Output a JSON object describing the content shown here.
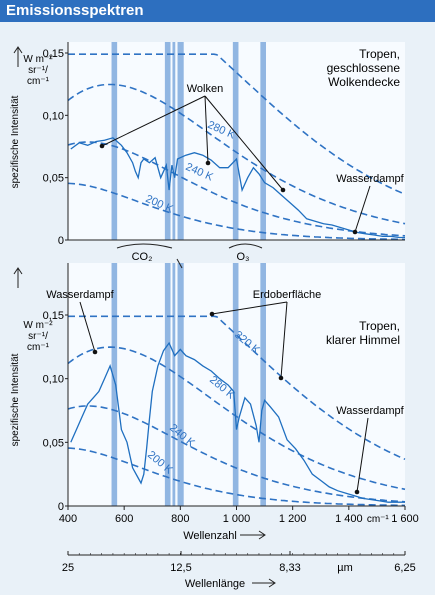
{
  "title": "Emissionsspektren",
  "colors": {
    "header": "#2d6fbf",
    "spectrum": "#1f6fc0",
    "planck": "#2f73c4",
    "band": "#6f9fd8",
    "background": "#e9f1f8",
    "plot": "#f7fbff"
  },
  "chart_data": [
    {
      "type": "line",
      "panel_label": "Tropen,\ngeschlossene\nWolkendecke",
      "ylabel": "spezifische Intensität",
      "yunit": "W m⁻² sr⁻¹/ cm⁻¹",
      "y_ticks": [
        "0,15",
        "0,10",
        "0,05",
        "0"
      ],
      "ylim": [
        0,
        0.15
      ],
      "xlim": [
        400,
        1600
      ],
      "planck_labels": [
        "280 K",
        "240 K",
        "200 K"
      ],
      "annotations": [
        "Wolken",
        "Wasserdampf"
      ],
      "series": [
        {
          "x": [
            410,
            440,
            470,
            500,
            530,
            560,
            590,
            610,
            630,
            640,
            650,
            660,
            670,
            690,
            710,
            730,
            750,
            760,
            770,
            780,
            790,
            800,
            820,
            850,
            880,
            910,
            940,
            970,
            1000,
            1020,
            1040,
            1060,
            1080,
            1100,
            1130,
            1160,
            1190,
            1220,
            1250,
            1280,
            1310,
            1340,
            1370,
            1400,
            1430,
            1460,
            1490,
            1520,
            1550,
            1580,
            1600
          ],
          "y": [
            0.073,
            0.078,
            0.076,
            0.079,
            0.08,
            0.082,
            0.076,
            0.07,
            0.062,
            0.055,
            0.05,
            0.062,
            0.065,
            0.062,
            0.066,
            0.05,
            0.06,
            0.04,
            0.06,
            0.05,
            0.065,
            0.066,
            0.068,
            0.07,
            0.068,
            0.064,
            0.058,
            0.058,
            0.065,
            0.04,
            0.05,
            0.058,
            0.053,
            0.046,
            0.042,
            0.036,
            0.03,
            0.024,
            0.017,
            0.015,
            0.013,
            0.012,
            0.01,
            0.008,
            0.006,
            0.005,
            0.004,
            0.003,
            0.003,
            0.002,
            0.002
          ]
        }
      ]
    },
    {
      "type": "line",
      "panel_label": "Tropen,\nklarer Himmel",
      "ylabel": "spezifische Intensität",
      "yunit": "W m⁻² sr⁻¹/ cm⁻¹",
      "y_ticks": [
        "0,15",
        "0,10",
        "0,05",
        "0"
      ],
      "ylim": [
        0,
        0.15
      ],
      "xlim": [
        400,
        1600
      ],
      "planck_labels": [
        "320 K",
        "280 K",
        "240 K",
        "200 K"
      ],
      "annotations": [
        "Wasserdampf",
        "Erdoberfläche",
        "Wasserdampf"
      ],
      "band_labels": [
        "CO₂",
        "O₃"
      ],
      "series": [
        {
          "x": [
            410,
            430,
            450,
            470,
            490,
            510,
            530,
            550,
            570,
            590,
            610,
            630,
            650,
            660,
            670,
            680,
            690,
            700,
            720,
            740,
            760,
            780,
            800,
            820,
            850,
            880,
            910,
            940,
            970,
            990,
            1000,
            1010,
            1030,
            1050,
            1070,
            1080,
            1090,
            1100,
            1120,
            1150,
            1180,
            1210,
            1240,
            1270,
            1300,
            1330,
            1360,
            1390,
            1420,
            1450,
            1480,
            1510,
            1540,
            1570,
            1600
          ],
          "y": [
            0.05,
            0.06,
            0.07,
            0.08,
            0.085,
            0.09,
            0.1,
            0.11,
            0.095,
            0.06,
            0.05,
            0.03,
            0.022,
            0.018,
            0.025,
            0.045,
            0.068,
            0.09,
            0.11,
            0.122,
            0.128,
            0.118,
            0.123,
            0.118,
            0.115,
            0.11,
            0.106,
            0.1,
            0.095,
            0.09,
            0.06,
            0.07,
            0.085,
            0.08,
            0.063,
            0.05,
            0.075,
            0.083,
            0.078,
            0.07,
            0.052,
            0.045,
            0.036,
            0.025,
            0.02,
            0.015,
            0.012,
            0.01,
            0.008,
            0.006,
            0.005,
            0.004,
            0.003,
            0.003,
            0.003
          ]
        }
      ]
    }
  ],
  "x_axis": {
    "ticks": [
      "400",
      "600",
      "800",
      "1 000",
      "1 200",
      "1 400",
      "1 600"
    ],
    "unit": "cm⁻¹",
    "label": "Wellenzahl"
  },
  "wavelength_axis": {
    "ticks": [
      "25",
      "12,5",
      "8,33",
      "6,25"
    ],
    "unit": "µm",
    "label": "Wellenlänge"
  },
  "absorption_bands": [
    [
      555,
      575
    ],
    [
      745,
      765
    ],
    [
      772,
      782
    ],
    [
      790,
      812
    ],
    [
      987,
      1007
    ],
    [
      1085,
      1105
    ]
  ],
  "planck_temps": [
    320,
    280,
    240,
    200
  ]
}
